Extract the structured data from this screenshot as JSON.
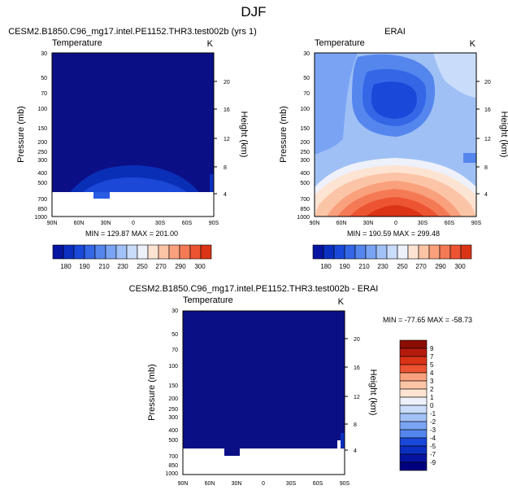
{
  "page": {
    "title": "DJF"
  },
  "colors": {
    "fill_palette": [
      "#00007f",
      "#0515a0",
      "#0b2fc0",
      "#1a48d9",
      "#3466e6",
      "#5586ee",
      "#7aa4f3",
      "#a2c1f7",
      "#c9dcfa",
      "#eef1f9",
      "#fde3d2",
      "#fcc4a6",
      "#f9a07c",
      "#f47a55",
      "#ec5432",
      "#db3316",
      "#b51b0d",
      "#8b0d04"
    ]
  },
  "chart_data": [
    {
      "type": "contour",
      "title": "CESM2.B1850.C96_mg17.intel.PE1152.THR3.test002b (yrs 1)",
      "subtitle_left": "Temperature",
      "subtitle_right": "K",
      "ylabel": "Pressure (mb)",
      "ylabel_right": "Height (km)",
      "x_ticks": [
        "90N",
        "60N",
        "30N",
        "0",
        "30S",
        "60S",
        "90S"
      ],
      "y_ticks": [
        30,
        50,
        70,
        100,
        150,
        200,
        250,
        300,
        400,
        500,
        700,
        850,
        1000
      ],
      "y_log": true,
      "height_ticks_km": [
        20,
        16,
        12,
        8,
        4
      ],
      "min_max_text": "MIN = 129.87   MAX = 201.00",
      "colorbar": {
        "orientation": "horizontal",
        "levels": [
          170,
          180,
          190,
          200,
          210,
          220,
          230,
          240,
          250,
          260,
          270,
          280,
          290,
          300,
          310
        ],
        "labels": [
          "180",
          "190",
          "210",
          "230",
          "250",
          "270",
          "290",
          "300"
        ]
      }
    },
    {
      "type": "contour",
      "title": "ERAI",
      "subtitle_left": "Temperature",
      "subtitle_right": "K",
      "ylabel": "Pressure (mb)",
      "ylabel_right": "Height (km)",
      "x_ticks": [
        "90N",
        "60N",
        "30N",
        "0",
        "30S",
        "60S",
        "90S"
      ],
      "y_ticks": [
        30,
        50,
        70,
        100,
        150,
        200,
        250,
        300,
        400,
        500,
        700,
        850,
        1000
      ],
      "y_log": true,
      "height_ticks_km": [
        20,
        16,
        12,
        8,
        4
      ],
      "min_max_text": "MIN = 190.59   MAX = 299.48",
      "colorbar": {
        "orientation": "horizontal",
        "levels": [
          170,
          180,
          190,
          200,
          210,
          220,
          230,
          240,
          250,
          260,
          270,
          280,
          290,
          300,
          310
        ],
        "labels": [
          "180",
          "190",
          "210",
          "230",
          "250",
          "270",
          "290",
          "300"
        ]
      }
    },
    {
      "type": "contour",
      "title": "CESM2.B1850.C96_mg17.intel.PE1152.THR3.test002b - ERAI",
      "subtitle_left": "Temperature",
      "subtitle_right": "K",
      "ylabel": "Pressure (mb)",
      "ylabel_right": "Height (km)",
      "x_ticks": [
        "90N",
        "60N",
        "30N",
        "0",
        "30S",
        "60S",
        "90S"
      ],
      "y_ticks": [
        30,
        50,
        70,
        100,
        150,
        200,
        250,
        300,
        400,
        500,
        700,
        850,
        1000
      ],
      "y_log": true,
      "height_ticks_km": [
        20,
        16,
        12,
        8,
        4
      ],
      "min_max_text": "MIN = -77.65   MAX = -58.73",
      "colorbar": {
        "orientation": "vertical",
        "levels": [
          -10,
          -9,
          -8,
          -7,
          -6,
          -5,
          -4,
          -3,
          -2,
          -1,
          0,
          1,
          2,
          3,
          4,
          5,
          6,
          7,
          8,
          9,
          10
        ],
        "labels": [
          "9",
          "7",
          "5",
          "4",
          "3",
          "2",
          "1",
          "0",
          "-1",
          "-2",
          "-3",
          "-4",
          "-5",
          "-7",
          "-9"
        ]
      }
    }
  ]
}
